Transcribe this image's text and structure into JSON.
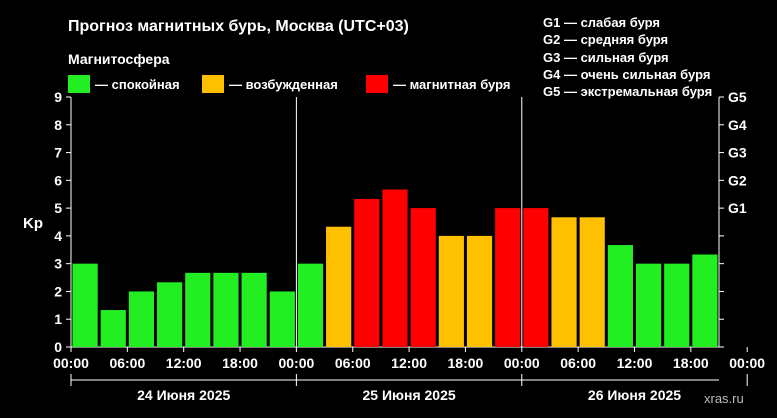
{
  "header": {
    "title": "Прогноз магнитных бурь, Москва (UTC+03)",
    "magnetosphere_label": "Магнитосфера"
  },
  "legend": [
    {
      "color": "#22ee22",
      "label": "— спокойная"
    },
    {
      "color": "#ffc000",
      "label": "— возбужденная"
    },
    {
      "color": "#ff0000",
      "label": "— магнитная буря"
    }
  ],
  "g_scale": [
    "G1 — слабая буря",
    "G2 — средняя буря",
    "G3 — сильная буря",
    "G4 — очень сильная буря",
    "G5 — экстремальная буря"
  ],
  "watermark": "xras.ru",
  "chart_data": {
    "type": "bar",
    "ylabel": "Kp",
    "ylim": [
      0,
      9
    ],
    "yticks": [
      "0",
      "1",
      "2",
      "3",
      "4",
      "5",
      "6",
      "7",
      "8",
      "9"
    ],
    "right_ticks": [
      {
        "value": 5,
        "label": "G1"
      },
      {
        "value": 6,
        "label": "G2"
      },
      {
        "value": 7,
        "label": "G3"
      },
      {
        "value": 8,
        "label": "G4"
      },
      {
        "value": 9,
        "label": "G5"
      }
    ],
    "xticks": [
      "00:00",
      "06:00",
      "12:00",
      "18:00",
      "00:00",
      "06:00",
      "12:00",
      "18:00",
      "00:00",
      "06:00",
      "12:00",
      "18:00",
      "00:00"
    ],
    "days": [
      "24 Июня 2025",
      "25 Июня 2025",
      "26 Июня 2025"
    ],
    "values": [
      3.0,
      1.33,
      2.0,
      2.33,
      2.67,
      2.67,
      2.67,
      2.0,
      3.0,
      4.33,
      5.33,
      5.67,
      5.0,
      4.0,
      4.0,
      5.0,
      5.0,
      4.67,
      4.67,
      3.67,
      3.0,
      3.0,
      3.33
    ],
    "thresholds": {
      "unsettled": 4,
      "storm": 5
    },
    "colors": {
      "quiet": "#22ee22",
      "unsettled": "#ffc000",
      "storm": "#ff0000"
    },
    "grid": false
  }
}
